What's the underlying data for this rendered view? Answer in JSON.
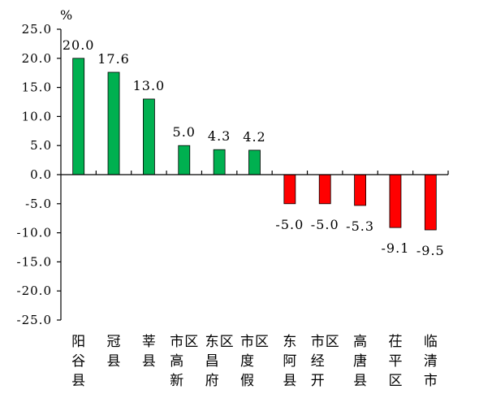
{
  "chart_data": {
    "type": "bar",
    "ylabel": "%",
    "ylim": [
      -25,
      25
    ],
    "ytick_step": 5,
    "ytick_labels": [
      "25.0",
      "20.0",
      "15.0",
      "10.0",
      "5.0",
      "0.0",
      "-5.0",
      "-10.0",
      "-15.0",
      "-20.0",
      "-25.0"
    ],
    "categories": [
      "阳谷县",
      "冠县",
      "莘县",
      "市高新区",
      "东昌府区",
      "市度假区",
      "东阿县",
      "市经开区",
      "高唐县",
      "茌平区",
      "临清市"
    ],
    "values": [
      20.0,
      17.6,
      13.0,
      5.0,
      4.3,
      4.2,
      -5.0,
      -5.0,
      -5.3,
      -9.1,
      -9.5
    ],
    "data_labels": [
      "20.0",
      "17.6",
      "13.0",
      "5.0",
      "4.3",
      "4.2",
      "-5.0",
      "-5.0",
      "-5.3",
      "-9.1",
      "-9.5"
    ],
    "colors": {
      "positive": "#00b050",
      "negative": "#ff0000",
      "axis": "#000000"
    },
    "grid": false,
    "legend": "none"
  }
}
